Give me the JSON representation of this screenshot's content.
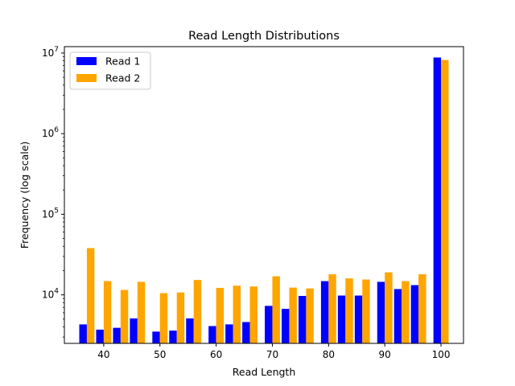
{
  "chart_data": {
    "type": "bar",
    "title": "Read Length Distributions",
    "xlabel": "Read Length",
    "ylabel": "Frequency (log scale)",
    "yscale": "log",
    "xlim": [
      33,
      104
    ],
    "ylim": [
      2500,
      12000000
    ],
    "x_ticks": [
      40,
      50,
      60,
      70,
      80,
      90,
      100
    ],
    "y_ticks": [
      {
        "value": 10000,
        "base": "10",
        "exp": "4"
      },
      {
        "value": 100000,
        "base": "10",
        "exp": "5"
      },
      {
        "value": 1000000,
        "base": "10",
        "exp": "6"
      },
      {
        "value": 10000000,
        "base": "10",
        "exp": "7"
      }
    ],
    "grid": false,
    "legend_position": "top-left",
    "x": [
      37,
      40,
      43,
      46,
      50,
      53,
      56,
      60,
      63,
      66,
      70,
      73,
      76,
      80,
      83,
      86,
      90,
      93,
      96,
      100
    ],
    "series": [
      {
        "name": "Read 1",
        "color": "#0000ff",
        "values": [
          4300,
          3700,
          3900,
          5100,
          3500,
          3600,
          5100,
          4100,
          4300,
          4600,
          7300,
          6700,
          9700,
          14800,
          9800,
          9800,
          14500,
          11800,
          13200,
          8800000
        ]
      },
      {
        "name": "Read 2",
        "color": "#ffa500",
        "values": [
          38000,
          14800,
          11500,
          14500,
          10500,
          10700,
          15300,
          12200,
          13000,
          12700,
          17000,
          12300,
          12000,
          18000,
          16000,
          15500,
          19000,
          14800,
          18000,
          8200000
        ]
      }
    ]
  }
}
